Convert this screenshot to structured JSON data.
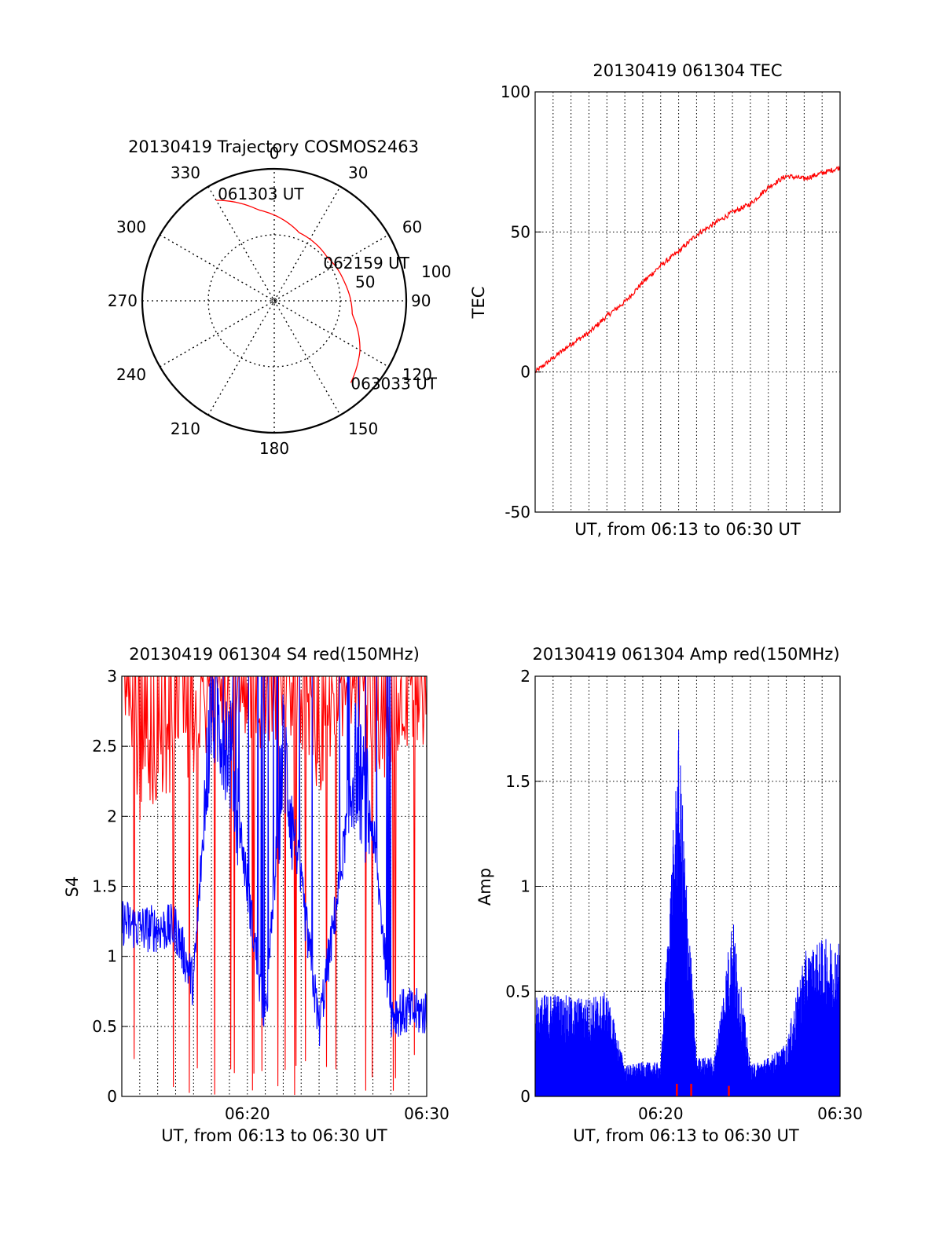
{
  "colors": {
    "red": "#ff0000",
    "blue": "#0000ff",
    "axis": "#000000",
    "grid": "#000000",
    "background": "#ffffff"
  },
  "chart_data": [
    {
      "type": "polar",
      "title": "20130419 Trajectory COSMOS2463",
      "angle_labels": [
        "0",
        "30",
        "60",
        "90",
        "120",
        "150",
        "180",
        "210",
        "240",
        "270",
        "300",
        "330"
      ],
      "radial_labels": [
        "50",
        "100"
      ],
      "radial_range": [
        0,
        100
      ],
      "grid": true,
      "series": [
        {
          "color": "#ff0000",
          "points": [
            {
              "azimuth": 330,
              "radius": 88
            },
            {
              "azimuth": 350,
              "radius": 70
            },
            {
              "azimuth": 20,
              "radius": 55
            },
            {
              "azimuth": 50,
              "radius": 52
            },
            {
              "azimuth": 75,
              "radius": 55
            },
            {
              "azimuth": 100,
              "radius": 60
            },
            {
              "azimuth": 120,
              "radius": 75
            },
            {
              "azimuth": 137,
              "radius": 85
            }
          ]
        }
      ],
      "annotations": [
        {
          "text": "061303 UT",
          "azimuth": 330,
          "radius": 88
        },
        {
          "text": "062159 UT",
          "azimuth": 71,
          "radius": 55
        },
        {
          "text": "063033 UT",
          "azimuth": 137,
          "radius": 85
        }
      ]
    },
    {
      "type": "line",
      "title": "20130419 061304 TEC",
      "xlabel": "UT, from 06:13 to 06:30 UT",
      "ylabel": "TEC",
      "xlim": [
        0,
        17
      ],
      "ylim": [
        -50,
        100
      ],
      "yticks": [
        "-50",
        "0",
        "50",
        "100"
      ],
      "grid": true,
      "series": [
        {
          "color": "#ff0000",
          "points": [
            [
              0,
              0
            ],
            [
              1,
              5
            ],
            [
              2,
              10
            ],
            [
              3,
              14
            ],
            [
              4,
              20
            ],
            [
              5,
              25
            ],
            [
              6,
              32
            ],
            [
              7,
              38
            ],
            [
              8,
              43
            ],
            [
              9,
              49
            ],
            [
              10,
              53
            ],
            [
              11,
              57
            ],
            [
              12,
              60
            ],
            [
              13,
              66
            ],
            [
              14,
              70
            ],
            [
              15,
              69
            ],
            [
              16,
              71
            ],
            [
              17,
              73
            ]
          ]
        }
      ]
    },
    {
      "type": "line",
      "title": "20130419 061304 S4 red(150MHz)",
      "xlabel": "UT, from 06:13 to 06:30 UT",
      "ylabel": "S4",
      "xlim": [
        0,
        17
      ],
      "xticks": [
        "06:20",
        "06:30"
      ],
      "ylim": [
        0,
        3
      ],
      "yticks": [
        "0",
        "0.5",
        "1",
        "1.5",
        "2",
        "2.5",
        "3"
      ],
      "grid": true,
      "series": [
        {
          "color": "#0000ff",
          "points": [
            [
              0,
              1.25
            ],
            [
              1,
              1.2
            ],
            [
              2,
              1.2
            ],
            [
              3,
              1.2
            ],
            [
              4,
              0.8
            ],
            [
              5,
              2.8
            ],
            [
              6,
              2.5
            ],
            [
              7,
              1.5
            ],
            [
              8,
              0.5
            ],
            [
              9,
              2.5
            ],
            [
              10,
              1.5
            ],
            [
              11,
              0.5
            ],
            [
              12,
              1.4
            ],
            [
              13,
              2.4
            ],
            [
              14,
              1.9
            ],
            [
              15,
              0.6
            ],
            [
              16,
              0.6
            ],
            [
              17,
              0.6
            ]
          ]
        },
        {
          "color": "#ff0000",
          "points": [
            [
              0,
              3
            ],
            [
              1,
              2.2
            ],
            [
              2,
              2.4
            ],
            [
              3,
              2.5
            ],
            [
              4,
              2.6
            ],
            [
              5,
              2.8
            ],
            [
              6,
              2.7
            ],
            [
              7,
              2.9
            ],
            [
              8,
              2.6
            ],
            [
              9,
              2.9
            ],
            [
              10,
              2.8
            ],
            [
              11,
              2.4
            ],
            [
              12,
              2.8
            ],
            [
              13,
              2.9
            ],
            [
              14,
              2.5
            ],
            [
              15,
              2.6
            ],
            [
              16,
              2.8
            ],
            [
              17,
              2.8
            ]
          ]
        }
      ]
    },
    {
      "type": "line",
      "title": "20130419 061304 Amp red(150MHz)",
      "xlabel": "UT, from 06:13 to 06:30 UT",
      "ylabel": "Amp",
      "xlim": [
        0,
        17
      ],
      "xticks": [
        "06:20",
        "06:30"
      ],
      "ylim": [
        0,
        2
      ],
      "yticks": [
        "0",
        "0.5",
        "1",
        "1.5",
        "2"
      ],
      "grid": true,
      "series": [
        {
          "color": "#0000ff",
          "points": [
            [
              0,
              0.38
            ],
            [
              1,
              0.4
            ],
            [
              2,
              0.38
            ],
            [
              3,
              0.38
            ],
            [
              4,
              0.4
            ],
            [
              5,
              0.12
            ],
            [
              6,
              0.13
            ],
            [
              7,
              0.13
            ],
            [
              8,
              1.4
            ],
            [
              9,
              0.15
            ],
            [
              10,
              0.15
            ],
            [
              11,
              0.7
            ],
            [
              12,
              0.12
            ],
            [
              13,
              0.15
            ],
            [
              14,
              0.2
            ],
            [
              15,
              0.55
            ],
            [
              16,
              0.6
            ],
            [
              17,
              0.6
            ]
          ]
        },
        {
          "color": "#ff0000",
          "points": [
            [
              7.9,
              0.06
            ],
            [
              8.7,
              0.06
            ],
            [
              10.8,
              0.05
            ]
          ]
        }
      ]
    }
  ]
}
